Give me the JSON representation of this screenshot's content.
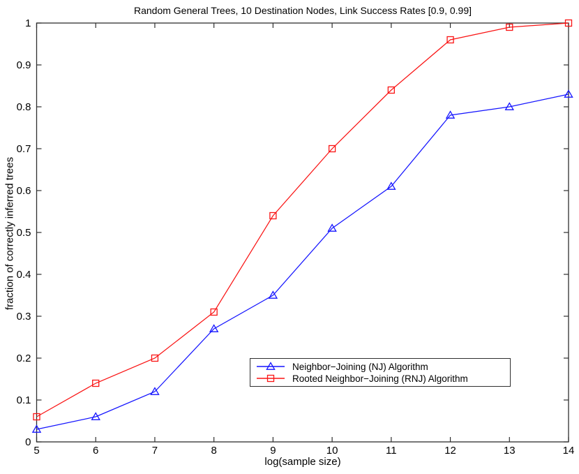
{
  "figure": {
    "background": "#ffffff",
    "axis_color": "#2e2e2e",
    "tick_length": 7
  },
  "chart_data": {
    "type": "line",
    "title": "Random General Trees, 10 Destination Nodes, Link Success Rates [0.9, 0.99]",
    "xlabel": "log(sample size)",
    "ylabel": "fraction of correctly inferred trees",
    "xlim": [
      5,
      14
    ],
    "ylim": [
      0,
      1
    ],
    "x_ticks": [
      "5",
      "6",
      "7",
      "8",
      "9",
      "10",
      "11",
      "12",
      "13",
      "14"
    ],
    "y_ticks": [
      "0",
      "0.1",
      "0.2",
      "0.3",
      "0.4",
      "0.5",
      "0.6",
      "0.7",
      "0.8",
      "0.9",
      "1"
    ],
    "grid": false,
    "legend_position": "inside-bottom-center",
    "x": [
      5,
      6,
      7,
      8,
      9,
      10,
      11,
      12,
      13,
      14
    ],
    "series": [
      {
        "name": "Neighbor−Joining (NJ) Algorithm",
        "color": "#1414ff",
        "marker": "triangle",
        "values": [
          0.03,
          0.06,
          0.12,
          0.27,
          0.35,
          0.51,
          0.61,
          0.78,
          0.8,
          0.83
        ]
      },
      {
        "name": "Rooted Neighbor−Joining (RNJ) Algorithm",
        "color": "#fa1414",
        "marker": "square",
        "values": [
          0.06,
          0.14,
          0.2,
          0.31,
          0.54,
          0.7,
          0.84,
          0.96,
          0.99,
          1.0
        ]
      }
    ]
  }
}
